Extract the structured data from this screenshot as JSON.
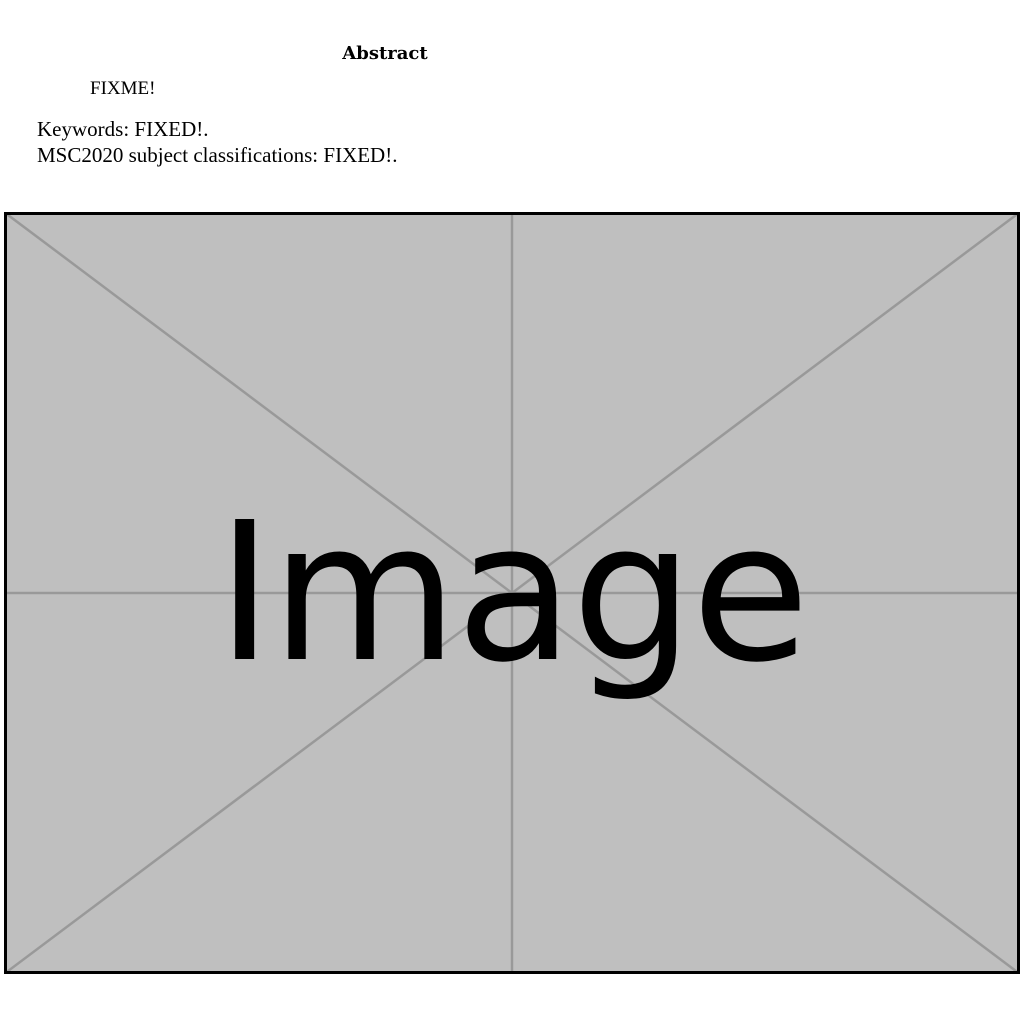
{
  "abstract": {
    "heading": "Abstract",
    "body": "FIXME!"
  },
  "keywords": {
    "keywords_line": "Keywords: FIXED!.",
    "msc_line": "MSC2020 subject classifications: FIXED!."
  },
  "figure": {
    "placeholder_label": "Image",
    "background_color": "#bfbfbf",
    "line_color": "#999999",
    "border_color": "#000000"
  }
}
